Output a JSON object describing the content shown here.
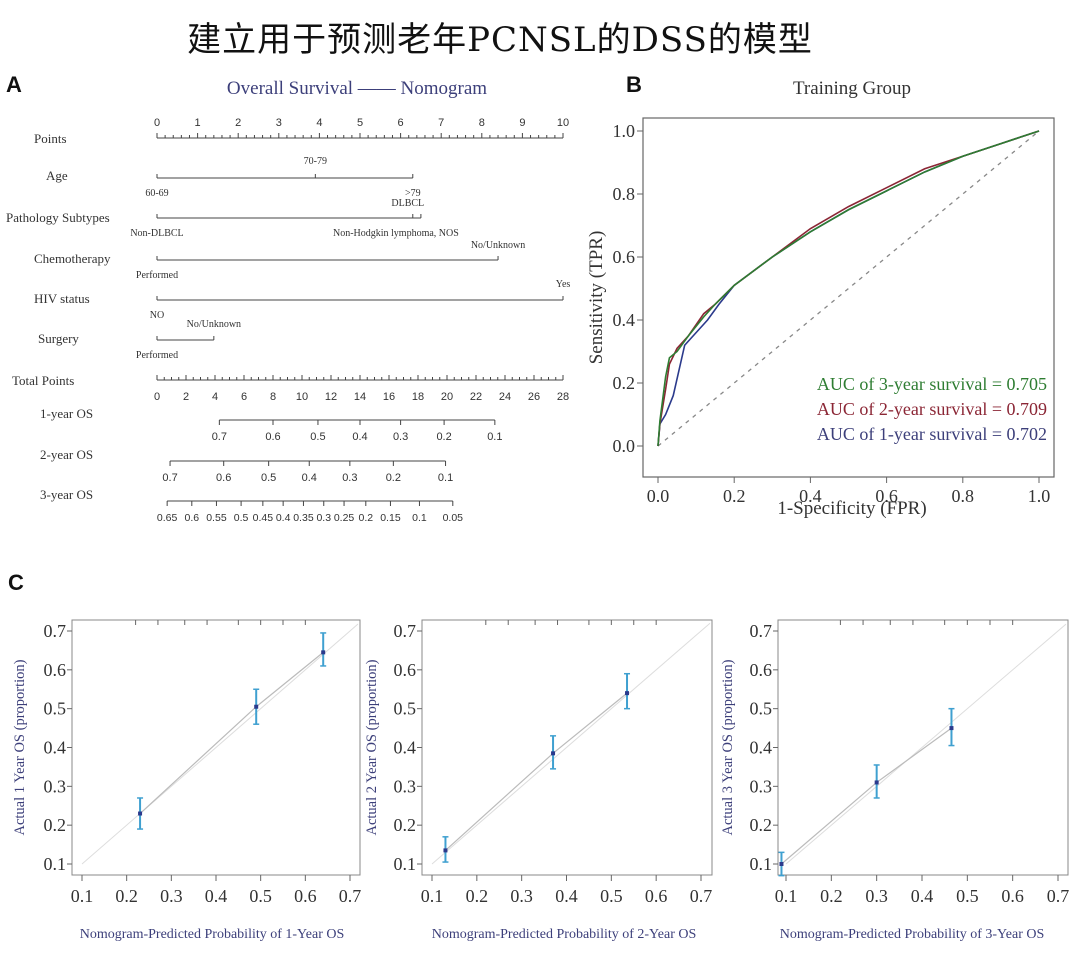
{
  "main_title": "建立用于预测老年PCNSL的DSS的模型",
  "panels": {
    "a": {
      "label": "A"
    },
    "b": {
      "label": "B"
    },
    "c": {
      "label": "C"
    }
  },
  "chart_data": [
    {
      "type": "nomogram",
      "panel": "A",
      "title": "Overall Survival —— Nomogram",
      "title_color": "#3c3f7a",
      "points_axis": {
        "label": "Points",
        "ticks": [
          0,
          1,
          2,
          3,
          4,
          5,
          6,
          7,
          8,
          9,
          10
        ]
      },
      "variables": [
        {
          "label": "Age",
          "levels": [
            {
              "name": "60-69",
              "points": 0
            },
            {
              "name": "70-79",
              "points": 3.9
            },
            {
              "name": ">79",
              "points": 6.3
            }
          ]
        },
        {
          "label": "Pathology Subtypes",
          "levels": [
            {
              "name": "Non-DLBCL",
              "points": 0
            },
            {
              "name": "DLBCL",
              "points": 6.3
            },
            {
              "name": "Non-Hodgkin lymphoma, NOS",
              "points": 6.5
            }
          ]
        },
        {
          "label": "Chemotherapy",
          "levels": [
            {
              "name": "Performed",
              "points": 0
            },
            {
              "name": "No/Unknown",
              "points": 8.4
            }
          ]
        },
        {
          "label": "HIV status",
          "levels": [
            {
              "name": "NO",
              "points": 0
            },
            {
              "name": "Yes",
              "points": 10
            }
          ]
        },
        {
          "label": "Surgery",
          "levels": [
            {
              "name": "Performed",
              "points": 0
            },
            {
              "name": "No/Unknown",
              "points": 1.4
            }
          ]
        }
      ],
      "total_points_axis": {
        "label": "Total Points",
        "ticks": [
          0,
          2,
          4,
          6,
          8,
          10,
          12,
          14,
          16,
          18,
          20,
          22,
          24,
          26,
          28
        ]
      },
      "survival_axes": [
        {
          "label": "1-year OS",
          "ticks": [
            "0.7",
            "0.6",
            "0.5",
            "0.4",
            "0.3",
            "0.2",
            "0.1"
          ],
          "total_points": [
            4.3,
            8.0,
            11.1,
            14.0,
            16.8,
            19.8,
            23.3
          ]
        },
        {
          "label": "2-year OS",
          "ticks": [
            "0.7",
            "0.6",
            "0.5",
            "0.4",
            "0.3",
            "0.2",
            "0.1"
          ],
          "total_points": [
            0.9,
            4.6,
            7.7,
            10.5,
            13.3,
            16.3,
            19.9
          ]
        },
        {
          "label": "3-year OS",
          "ticks": [
            "0.65",
            "0.6",
            "0.55",
            "0.5",
            "0.45",
            "0.4",
            "0.35",
            "0.3",
            "0.25",
            "0.2",
            "0.15",
            "0.1",
            "0.05"
          ],
          "total_points": [
            0.7,
            2.4,
            4.1,
            5.8,
            7.3,
            8.7,
            10.1,
            11.5,
            12.9,
            14.4,
            16.1,
            18.1,
            20.4
          ]
        }
      ]
    },
    {
      "type": "line",
      "panel": "B",
      "title": "Training Group",
      "xlabel": "1-Specificity (FPR)",
      "ylabel": "Sensitivity (TPR)",
      "xlim": [
        0,
        1
      ],
      "ylim": [
        0,
        1
      ],
      "xticks": [
        "0.0",
        "0.2",
        "0.4",
        "0.6",
        "0.8",
        "1.0"
      ],
      "yticks": [
        "0.0",
        "0.2",
        "0.4",
        "0.6",
        "0.8",
        "1.0"
      ],
      "grid": false,
      "legend_position": "lower right",
      "reference_line": {
        "style": "dashed",
        "from": [
          0,
          0
        ],
        "to": [
          1,
          1
        ]
      },
      "series": [
        {
          "name": "AUC of 3-year survival = 0.705",
          "color": "#2e7d32",
          "auc": 0.705,
          "x": [
            0,
            0.005,
            0.02,
            0.03,
            0.05,
            0.08,
            0.12,
            0.15,
            0.2,
            0.3,
            0.4,
            0.5,
            0.6,
            0.7,
            0.8,
            0.9,
            0.95,
            1.0
          ],
          "y": [
            0,
            0.08,
            0.22,
            0.28,
            0.3,
            0.35,
            0.41,
            0.45,
            0.51,
            0.6,
            0.68,
            0.75,
            0.81,
            0.87,
            0.92,
            0.96,
            0.98,
            1.0
          ]
        },
        {
          "name": "AUC of 2-year survival = 0.709",
          "color": "#8b2635",
          "auc": 0.709,
          "x": [
            0,
            0.005,
            0.02,
            0.03,
            0.05,
            0.08,
            0.12,
            0.15,
            0.2,
            0.3,
            0.4,
            0.5,
            0.6,
            0.7,
            0.8,
            0.9,
            0.95,
            1.0
          ],
          "y": [
            0,
            0.07,
            0.18,
            0.26,
            0.31,
            0.35,
            0.42,
            0.45,
            0.51,
            0.6,
            0.69,
            0.76,
            0.82,
            0.88,
            0.92,
            0.96,
            0.98,
            1.0
          ]
        },
        {
          "name": "AUC of 1-year survival = 0.702",
          "color": "#2b3a8c",
          "auc": 0.702,
          "x": [
            0,
            0.005,
            0.02,
            0.04,
            0.07,
            0.1,
            0.13,
            0.16,
            0.2,
            0.3,
            0.4,
            0.5,
            0.6,
            0.7,
            0.8,
            0.9,
            0.95,
            1.0
          ],
          "y": [
            0,
            0.07,
            0.1,
            0.16,
            0.32,
            0.36,
            0.4,
            0.45,
            0.51,
            0.6,
            0.68,
            0.75,
            0.81,
            0.87,
            0.92,
            0.96,
            0.98,
            1.0
          ]
        }
      ],
      "legend": [
        {
          "text": "AUC of 3-year survival = 0.705",
          "color": "#2e7d32"
        },
        {
          "text": "AUC of 2-year survival = 0.709",
          "color": "#8b2635"
        },
        {
          "text": "AUC of 1-year survival = 0.702",
          "color": "#3c3f7a"
        }
      ]
    },
    {
      "type": "scatter",
      "panel": "C1",
      "title": "",
      "xlabel": "Nomogram-Predicted Probability of 1-Year OS",
      "ylabel": "Actual 1 Year OS (proportion)",
      "xlim": [
        0.08,
        0.73
      ],
      "ylim": [
        0.08,
        0.72
      ],
      "xticks": [
        "0.1",
        "0.2",
        "0.3",
        "0.4",
        "0.5",
        "0.6",
        "0.7"
      ],
      "yticks": [
        "0.1",
        "0.2",
        "0.3",
        "0.4",
        "0.5",
        "0.6",
        "0.7"
      ],
      "points": [
        {
          "x": 0.23,
          "y": 0.23,
          "lo": 0.19,
          "hi": 0.27
        },
        {
          "x": 0.49,
          "y": 0.505,
          "lo": 0.46,
          "hi": 0.55
        },
        {
          "x": 0.64,
          "y": 0.645,
          "lo": 0.61,
          "hi": 0.695
        }
      ]
    },
    {
      "type": "scatter",
      "panel": "C2",
      "title": "",
      "xlabel": "Nomogram-Predicted Probability of 2-Year OS",
      "ylabel": "Actual 2 Year OS (proportion)",
      "xlim": [
        0.08,
        0.73
      ],
      "ylim": [
        0.08,
        0.72
      ],
      "xticks": [
        "0.1",
        "0.2",
        "0.3",
        "0.4",
        "0.5",
        "0.6",
        "0.7"
      ],
      "yticks": [
        "0.1",
        "0.2",
        "0.3",
        "0.4",
        "0.5",
        "0.6",
        "0.7"
      ],
      "points": [
        {
          "x": 0.13,
          "y": 0.135,
          "lo": 0.105,
          "hi": 0.17
        },
        {
          "x": 0.37,
          "y": 0.385,
          "lo": 0.345,
          "hi": 0.43
        },
        {
          "x": 0.535,
          "y": 0.54,
          "lo": 0.5,
          "hi": 0.59
        }
      ]
    },
    {
      "type": "scatter",
      "panel": "C3",
      "title": "",
      "xlabel": "Nomogram-Predicted Probability of 3-Year OS",
      "ylabel": "Actual 3 Year OS (proportion)",
      "xlim": [
        0.08,
        0.73
      ],
      "ylim": [
        0.08,
        0.72
      ],
      "xticks": [
        "0.1",
        "0.2",
        "0.3",
        "0.4",
        "0.5",
        "0.6",
        "0.7"
      ],
      "yticks": [
        "0.1",
        "0.2",
        "0.3",
        "0.4",
        "0.5",
        "0.6",
        "0.7"
      ],
      "points": [
        {
          "x": 0.09,
          "y": 0.1,
          "lo": 0.07,
          "hi": 0.13
        },
        {
          "x": 0.3,
          "y": 0.31,
          "lo": 0.27,
          "hi": 0.355
        },
        {
          "x": 0.465,
          "y": 0.45,
          "lo": 0.405,
          "hi": 0.5
        }
      ]
    }
  ]
}
